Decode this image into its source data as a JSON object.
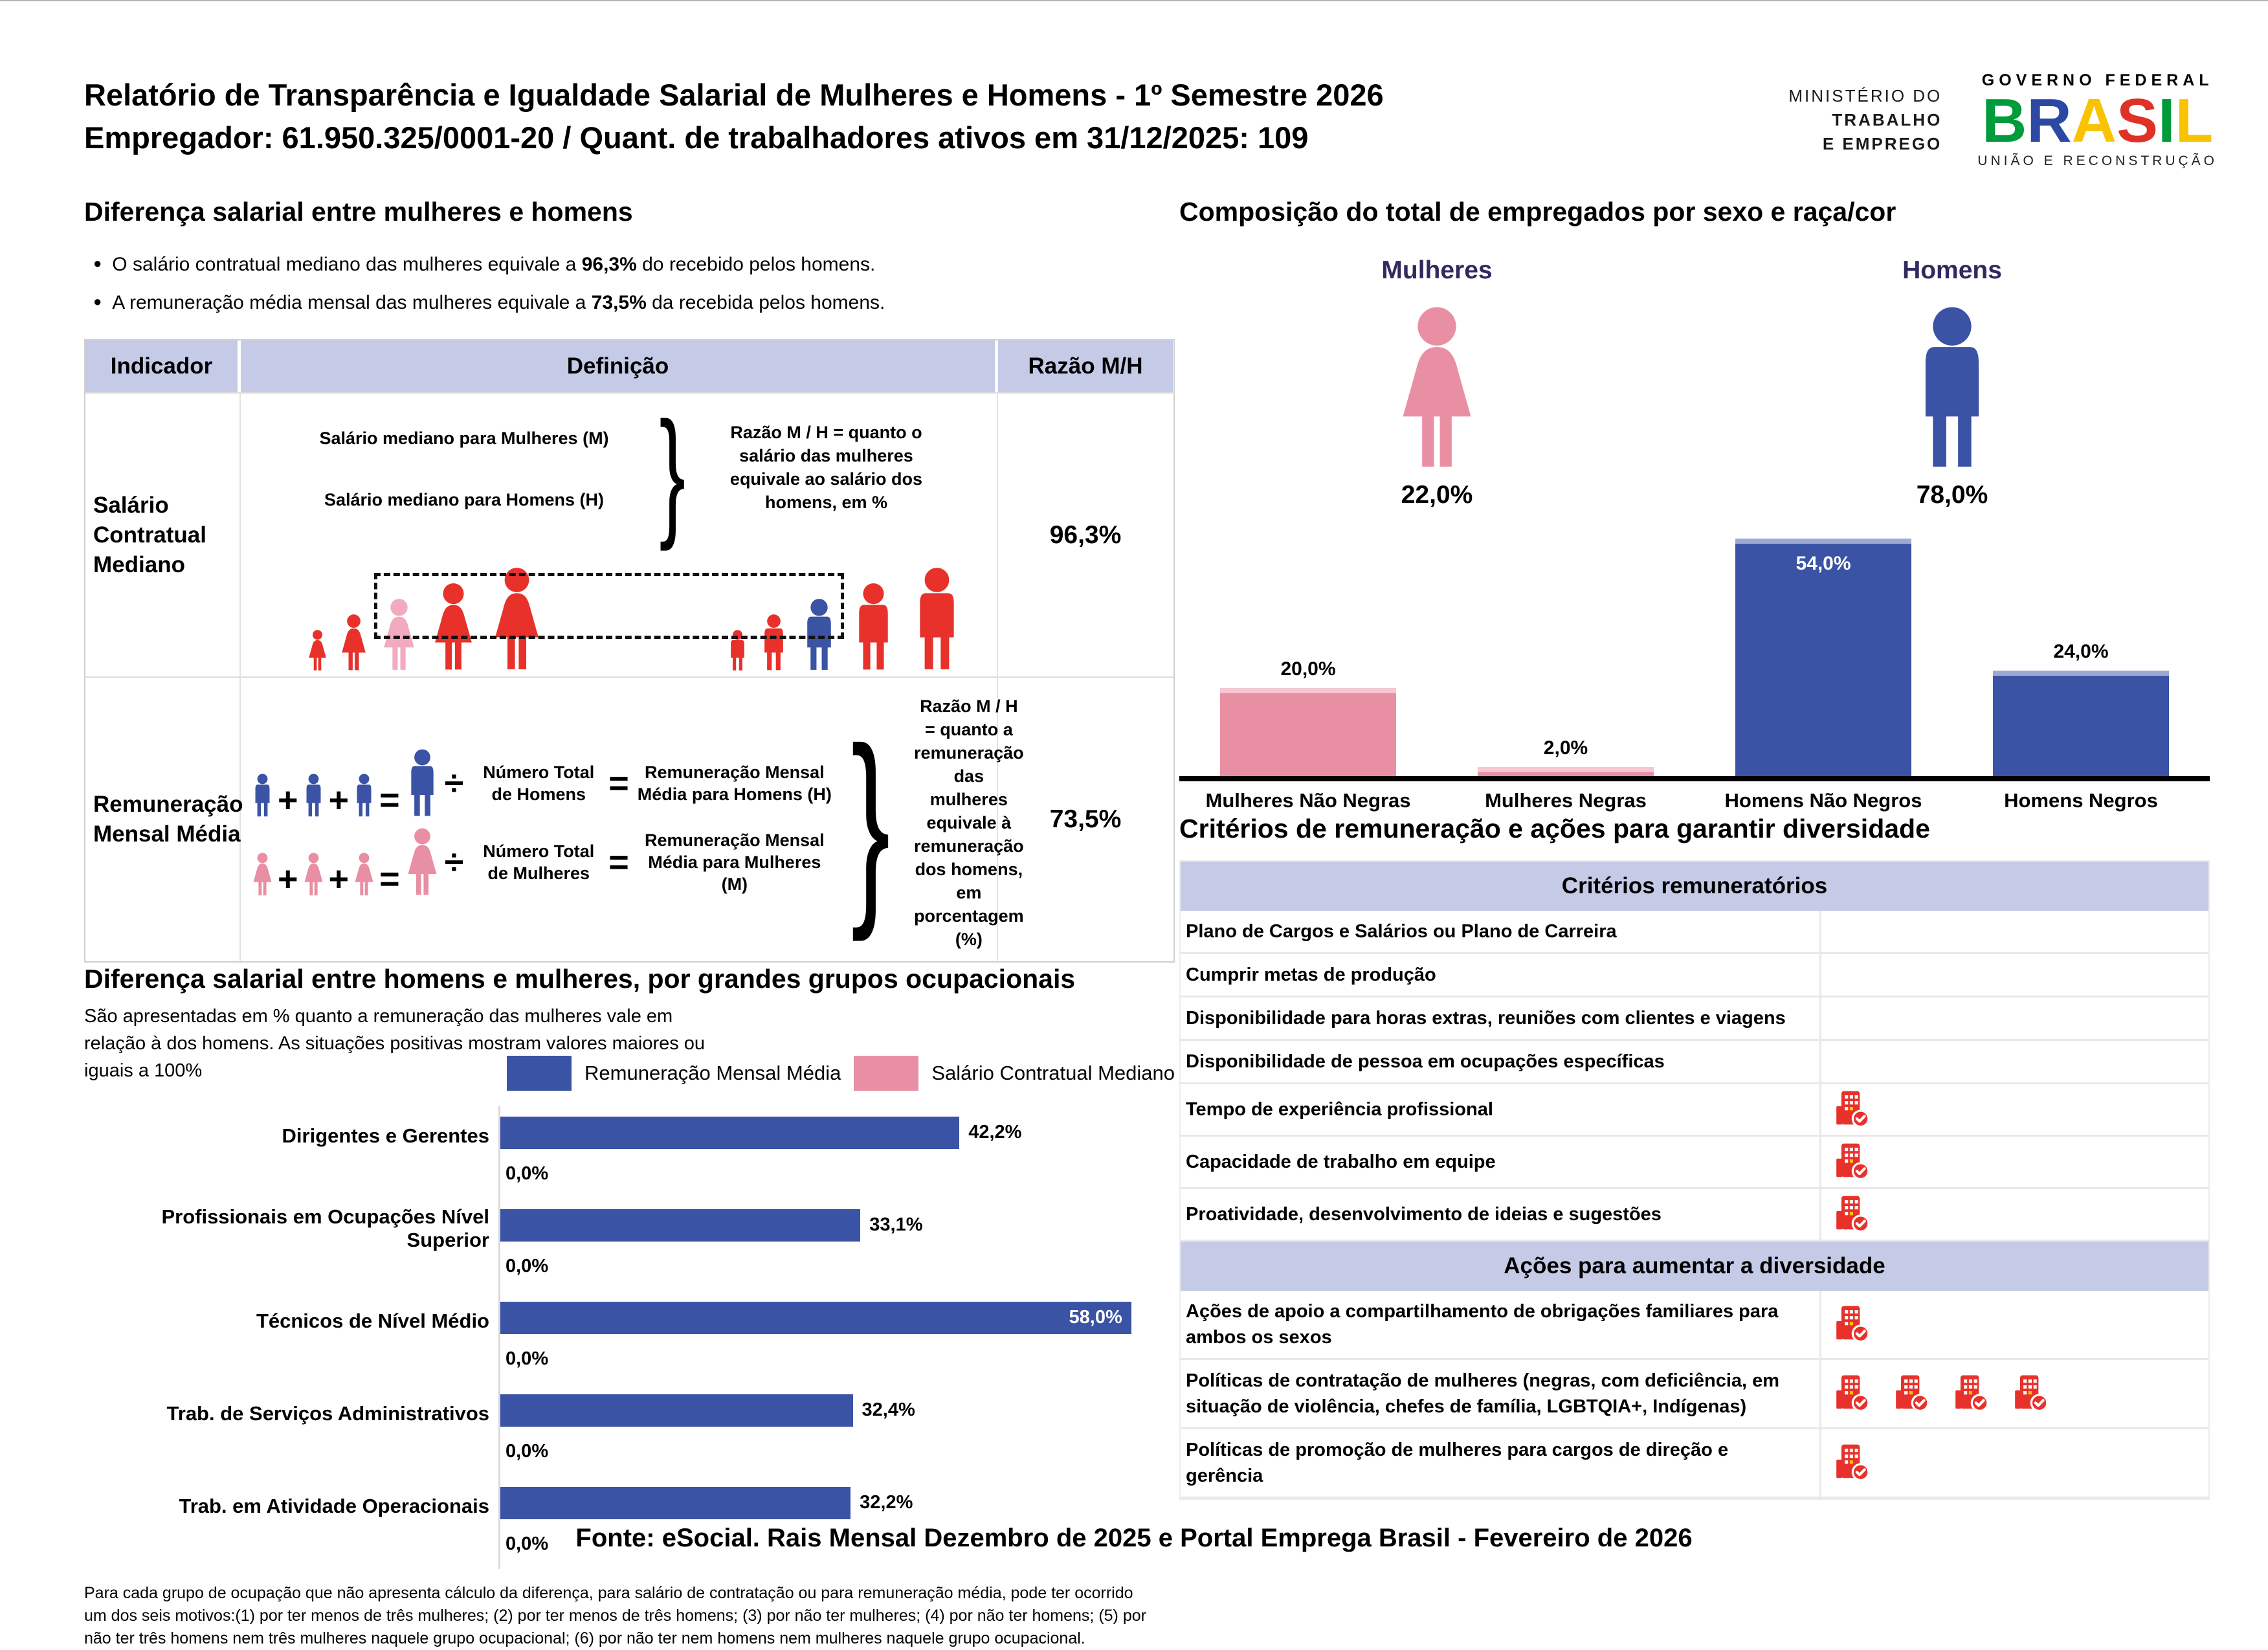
{
  "colors": {
    "blue": "#3a53a4",
    "pink": "#e98fa4",
    "pink_light": "#f2abbe",
    "red": "#e8312a",
    "band": "#c5cbe7",
    "navy": "#2f2a5f"
  },
  "ops": {
    "plus": "+",
    "equals": "=",
    "divide": "÷"
  },
  "header": {
    "title_line1": "Relatório de Transparência e Igualdade Salarial de Mulheres e Homens - 1º Semestre 2026",
    "title_line2": "Empregador: 61.950.325/0001-20 / Quant. de trabalhadores ativos em 31/12/2025: 109",
    "ministry_line1": "MINISTÉRIO DO",
    "ministry_line2": "TRABALHO",
    "ministry_line3": "E EMPREGO",
    "gov_top": "GOVERNO FEDERAL",
    "gov_brand_letters": [
      {
        "ch": "B",
        "color": "#009b3a"
      },
      {
        "ch": "R",
        "color": "#2b49a3"
      },
      {
        "ch": "A",
        "color": "#f8c300"
      },
      {
        "ch": "S",
        "color": "#e03127"
      },
      {
        "ch": "I",
        "color": "#009b3a"
      },
      {
        "ch": "L",
        "color": "#f8c300"
      }
    ],
    "gov_bottom": "UNIÃO E RECONSTRUÇÃO"
  },
  "salary_gap": {
    "title": "Diferença salarial entre mulheres e homens",
    "bullets": [
      [
        "O salário contratual mediano das mulheres equivale a ",
        "96,3%",
        " do recebido pelos homens."
      ],
      [
        "A remuneração média mensal das mulheres equivale a ",
        "73,5%",
        " da recebida pelos homens."
      ]
    ]
  },
  "indicator_table": {
    "headers": [
      "Indicador",
      "Definição",
      "Razão M/H"
    ],
    "rows": [
      {
        "indicator": "Salário Contratual Mediano",
        "def_line1": "Salário mediano para Mulheres (M)",
        "def_line2": "Salário mediano para Homens (H)",
        "def_note": "Razão M / H = quanto o salário das mulheres equivale ao salário dos homens, em %",
        "ratio": "96,3%"
      },
      {
        "indicator": "Remuneração Mensal Média",
        "men_label": "Número Total de Homens",
        "men_result": "Remuneração Mensal Média para Homens (H)",
        "women_label": "Número Total de Mulheres",
        "women_result": "Remuneração Mensal Média para Mulheres (M)",
        "def_note": "Razão M / H = quanto a remuneração das mulheres equivale à remuneração dos homens, em porcentagem (%)",
        "ratio": "73,5%"
      }
    ]
  },
  "median_diagram": {
    "women": [
      {
        "h": 64,
        "color": "red"
      },
      {
        "h": 88,
        "color": "red"
      },
      {
        "h": 112,
        "color": "pink_light"
      },
      {
        "h": 136,
        "color": "red"
      },
      {
        "h": 160,
        "color": "red"
      }
    ],
    "men": [
      {
        "h": 64,
        "color": "red"
      },
      {
        "h": 88,
        "color": "red"
      },
      {
        "h": 112,
        "color": "blue"
      },
      {
        "h": 136,
        "color": "red"
      },
      {
        "h": 160,
        "color": "red"
      }
    ]
  },
  "chart_data": [
    {
      "type": "bar",
      "title": "Composição do total de empregados por sexo e raça/cor",
      "sex_totals": [
        {
          "label": "Mulheres",
          "value": "22,0%"
        },
        {
          "label": "Homens",
          "value": "78,0%"
        }
      ],
      "categories": [
        "Mulheres Não Negras",
        "Mulheres Negras",
        "Homens Não Negros",
        "Homens Negros"
      ],
      "values": [
        20.0,
        2.0,
        54.0,
        24.0
      ],
      "value_labels": [
        "20,0%",
        "2,0%",
        "54,0%",
        "24,0%"
      ],
      "bar_colors": [
        "pink",
        "pink",
        "blue",
        "blue"
      ],
      "ylim": [
        0,
        56
      ],
      "legend_position": "none",
      "grid": false
    },
    {
      "type": "bar-horizontal",
      "title": "Diferença salarial entre homens e mulheres, por grandes grupos ocupacionais",
      "subtitle": "São apresentadas em % quanto a remuneração das mulheres vale em relação à dos homens. As situações positivas mostram valores maiores ou iguais a 100%",
      "categories": [
        "Dirigentes e Gerentes",
        "Profissionais em Ocupações Nível Superior",
        "Técnicos de Nível Médio",
        "Trab. de Serviços Administrativos",
        "Trab. em Atividade Operacionais"
      ],
      "series": [
        {
          "name": "Remuneração Mensal Média",
          "color": "blue",
          "values": [
            42.2,
            33.1,
            58.0,
            32.4,
            32.2
          ],
          "labels": [
            "42,2%",
            "33,1%",
            "58,0%",
            "32,4%",
            "32,2%"
          ]
        },
        {
          "name": "Salário Contratual Mediano",
          "color": "pink",
          "values": [
            0,
            0,
            0,
            0,
            0
          ],
          "labels": [
            "0,0%",
            "0,0%",
            "0,0%",
            "0,0%",
            "0,0%"
          ]
        }
      ],
      "xlim": [
        0,
        62
      ],
      "legend_position": "top-right",
      "grid": false
    }
  ],
  "criteria": {
    "title": "Critérios de remuneração e ações para garantir diversidade",
    "sections": [
      {
        "header": "Critérios remuneratórios",
        "rows": [
          {
            "label": "Plano de Cargos e Salários ou Plano de Carreira",
            "icons": 0
          },
          {
            "label": "Cumprir metas de produção",
            "icons": 0
          },
          {
            "label": "Disponibilidade para horas extras, reuniões com clientes e viagens",
            "icons": 0
          },
          {
            "label": "Disponibilidade de pessoa em ocupações específicas",
            "icons": 0
          },
          {
            "label": "Tempo de experiência profissional",
            "icons": 1
          },
          {
            "label": "Capacidade de trabalho em equipe",
            "icons": 1
          },
          {
            "label": "Proatividade, desenvolvimento de ideias e sugestões",
            "icons": 1
          }
        ]
      },
      {
        "header": "Ações para aumentar a diversidade",
        "rows": [
          {
            "label": "Ações de apoio a compartilhamento de obrigações familiares para ambos os sexos",
            "icons": 1
          },
          {
            "label": "Políticas de contratação de mulheres (negras, com deficiência, em situação de violência, chefes de família, LGBTQIA+, Indígenas)",
            "icons": 4
          },
          {
            "label": "Políticas de promoção de mulheres para cargos de direção e gerência",
            "icons": 1
          }
        ]
      }
    ]
  },
  "occupational_footnote": "Para cada grupo de ocupação que não apresenta cálculo da diferença, para salário de contratação ou para remuneração média, pode ter ocorrido um dos seis motivos:(1) por ter menos de três mulheres; (2) por ter menos de três homens; (3) por não ter mulheres; (4) por não ter homens; (5) por não ter três homens nem três mulheres naquele grupo ocupacional; (6) por não ter nem homens nem mulheres naquele grupo ocupacional.",
  "footer": {
    "text": "Fonte: eSocial. Rais Mensal Dezembro de 2025 e Portal Emprega Brasil - Fevereiro de 2026"
  }
}
